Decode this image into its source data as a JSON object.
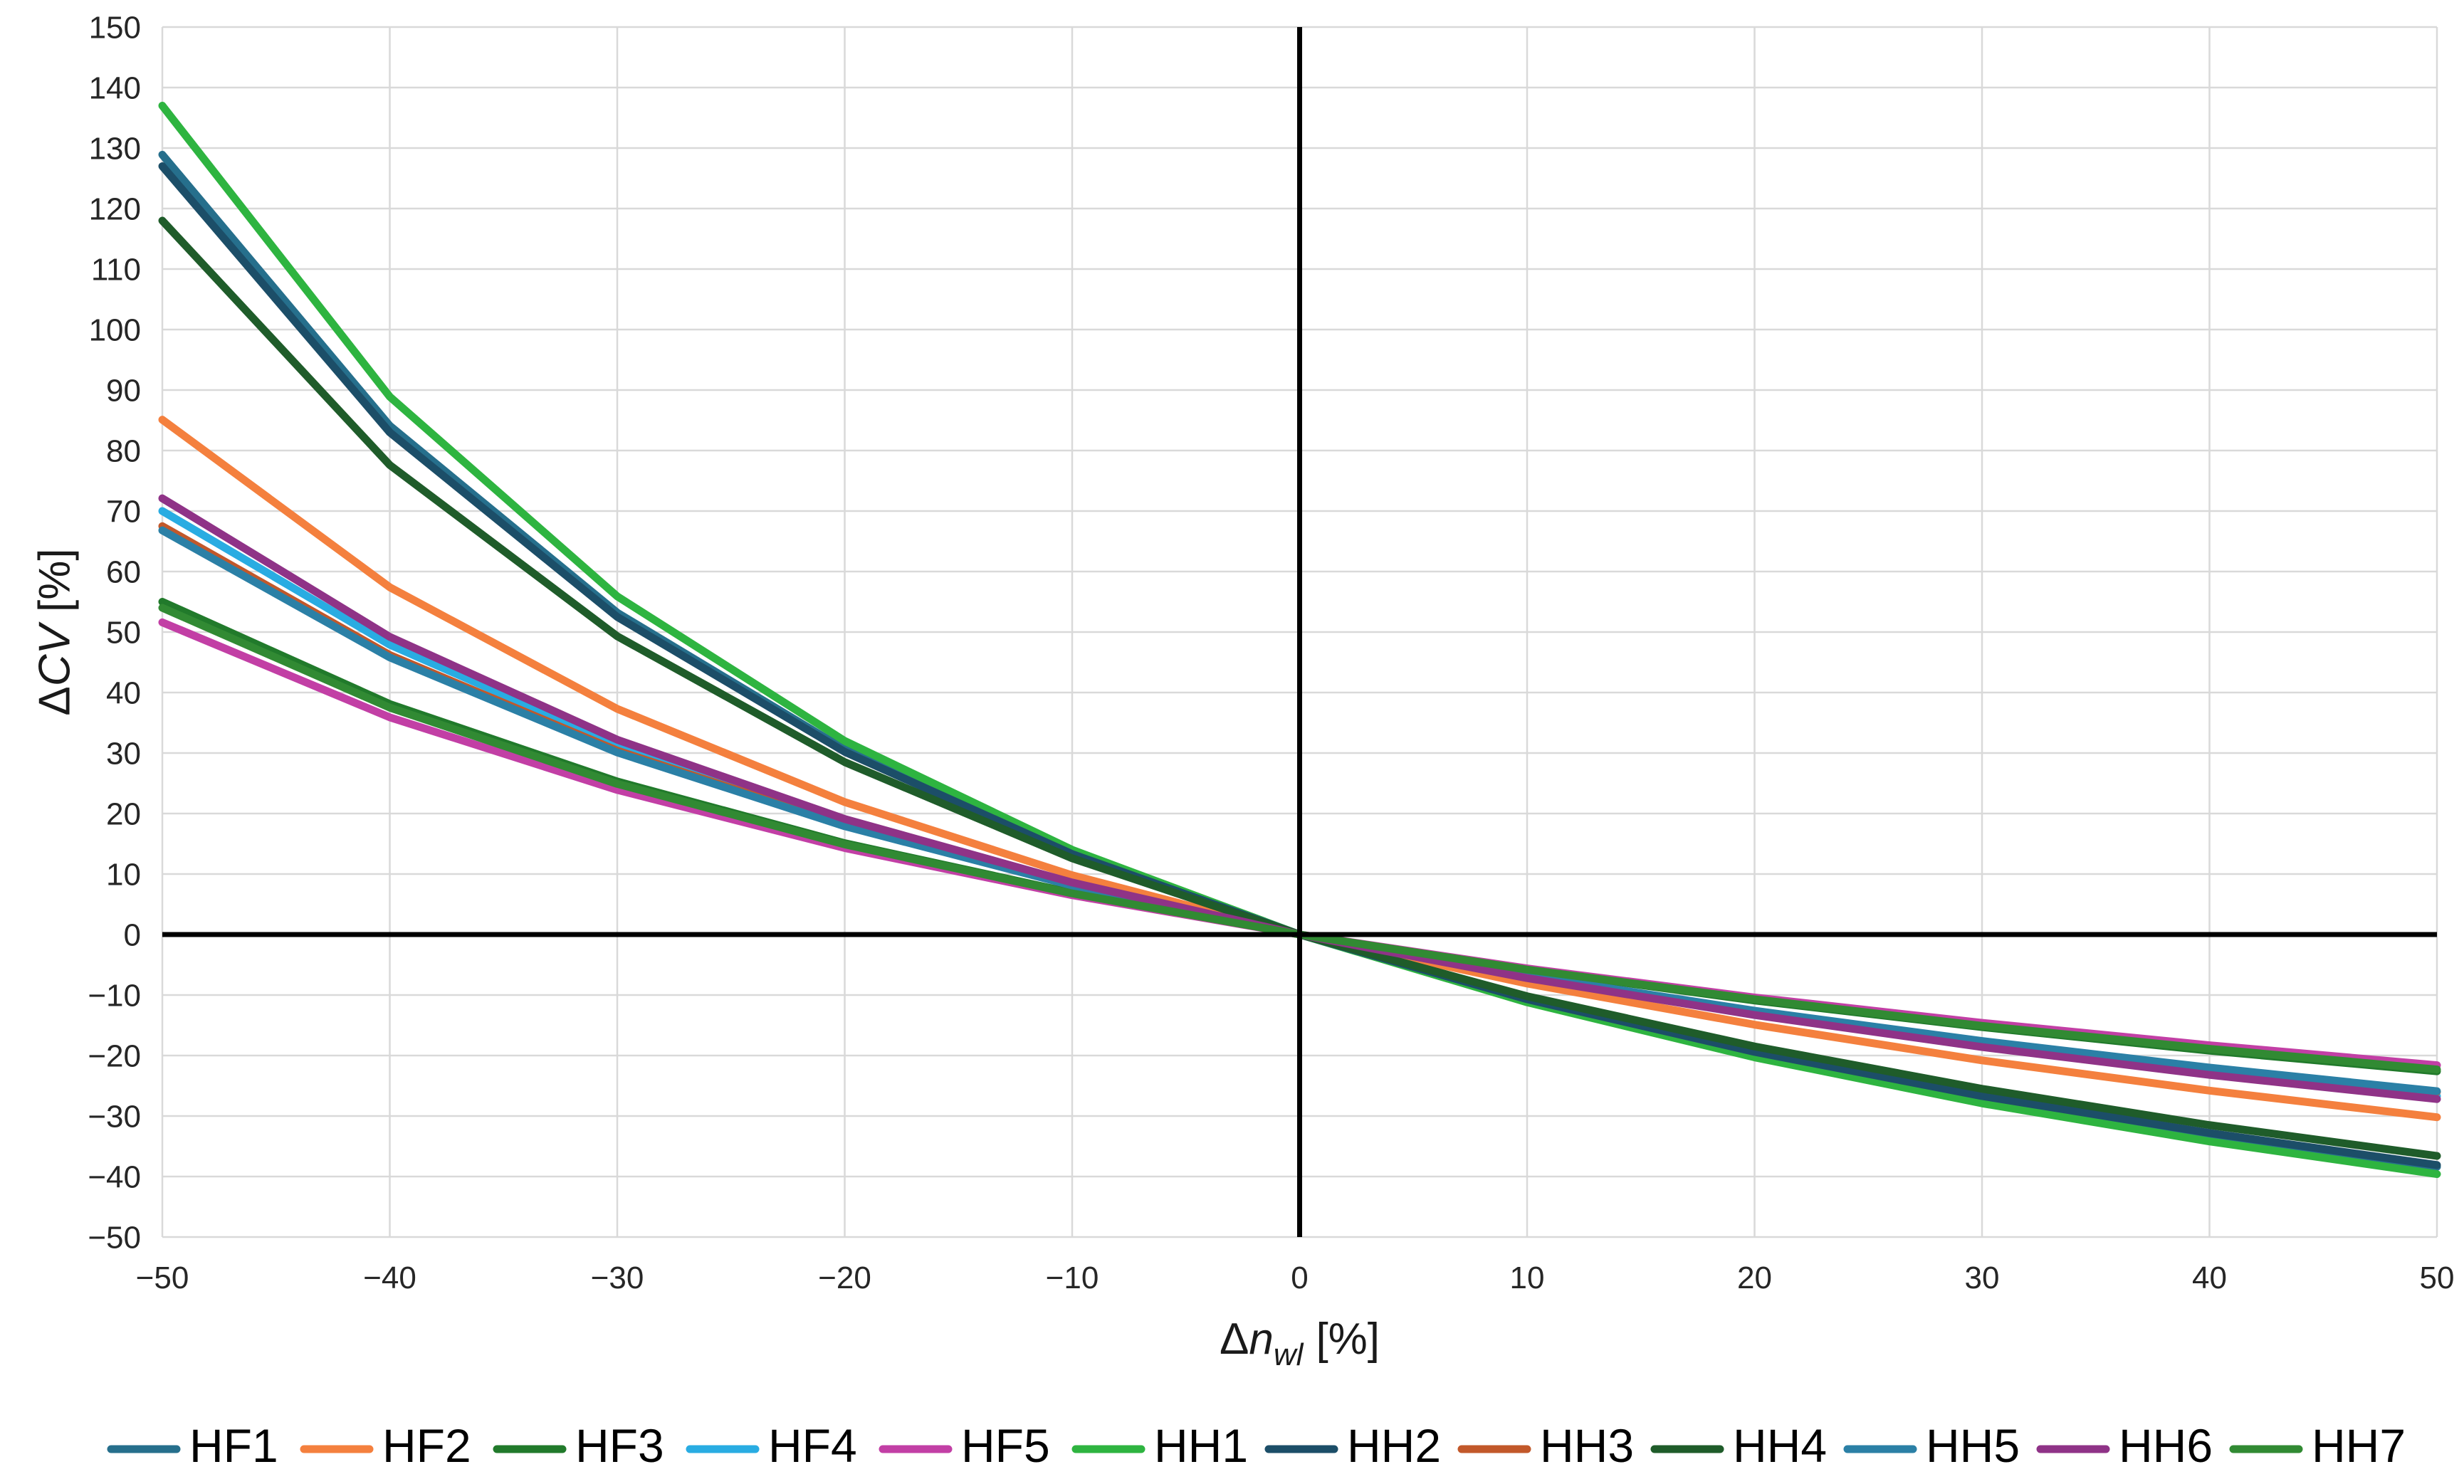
{
  "chart_data": {
    "type": "line",
    "title": "",
    "xlabel_text": "Δn_wl [%]",
    "ylabel_text": "ΔCV [%]",
    "xlabel_parts": {
      "delta": "Δ",
      "symbol": "n",
      "subscript": "wl",
      "unit": "[%]"
    },
    "ylabel_parts": {
      "delta": "Δ",
      "symbol": "CV",
      "unit": "[%]"
    },
    "xlim": [
      -50,
      50
    ],
    "ylim": [
      -50,
      150
    ],
    "grid": true,
    "gridline_color": "#D9D9D9",
    "axis_line_color": "#000000",
    "tick_label_color": "#262626",
    "axis_title_color": "#1a1a1a",
    "legend_text_color": "#000000",
    "legend_position": "bottom",
    "x_ticks": [
      -50,
      -40,
      -30,
      -20,
      -10,
      0,
      10,
      20,
      30,
      40,
      50
    ],
    "x_tick_labels": [
      "−50",
      "−40",
      "−30",
      "−20",
      "−10",
      "0",
      "10",
      "20",
      "30",
      "40",
      "50"
    ],
    "y_ticks": [
      150,
      140,
      130,
      120,
      110,
      100,
      90,
      80,
      70,
      60,
      50,
      40,
      30,
      20,
      10,
      0,
      -10,
      -20,
      -30,
      -40,
      -50
    ],
    "y_tick_labels": [
      "150",
      "140",
      "130",
      "120",
      "110",
      "100",
      "90",
      "80",
      "70",
      "60",
      "50",
      "40",
      "30",
      "20",
      "10",
      "0",
      "−10",
      "−20",
      "−30",
      "−40",
      "−50"
    ],
    "x": [
      -50,
      -40,
      -30,
      -20,
      -10,
      0,
      10,
      20,
      30,
      40,
      50
    ],
    "series": [
      {
        "name": "HF1",
        "color": "#266F8C",
        "values": [
          128.9,
          84.1,
          53.2,
          30.6,
          13.4,
          0,
          -10.8,
          -19.6,
          -26.9,
          -33.1,
          -38.4
        ]
      },
      {
        "name": "HF2",
        "color": "#F4803E",
        "values": [
          85.1,
          57.4,
          37.3,
          21.9,
          9.8,
          0,
          -8.1,
          -14.9,
          -20.8,
          -25.8,
          -30.2
        ]
      },
      {
        "name": "HF3",
        "color": "#217A2B",
        "values": [
          55.0,
          38.1,
          25.3,
          15.1,
          6.9,
          0,
          -5.8,
          -10.9,
          -15.3,
          -19.2,
          -22.6
        ]
      },
      {
        "name": "HF4",
        "color": "#29ACE2",
        "values": [
          70.0,
          47.9,
          31.4,
          18.6,
          8.4,
          0,
          -7.0,
          -13.0,
          -18.2,
          -22.7,
          -26.7
        ]
      },
      {
        "name": "HF5",
        "color": "#C23FA5",
        "values": [
          51.6,
          35.9,
          23.9,
          14.3,
          6.5,
          0,
          -5.6,
          -10.4,
          -14.6,
          -18.3,
          -21.6
        ]
      },
      {
        "name": "HH1",
        "color": "#2EB440",
        "values": [
          137.0,
          88.9,
          55.9,
          32.0,
          14.0,
          0,
          -11.2,
          -20.3,
          -27.9,
          -34.2,
          -39.6
        ]
      },
      {
        "name": "HH2",
        "color": "#1C4E68",
        "values": [
          127.0,
          83.0,
          52.5,
          30.2,
          13.3,
          0,
          -10.7,
          -19.4,
          -26.7,
          -32.8,
          -38.1
        ]
      },
      {
        "name": "HH3",
        "color": "#C2582A",
        "values": [
          67.5,
          46.2,
          30.4,
          18.1,
          8.2,
          0,
          -6.8,
          -12.7,
          -17.7,
          -22.2,
          -26.0
        ]
      },
      {
        "name": "HH4",
        "color": "#1F5C2A",
        "values": [
          118.0,
          77.6,
          49.3,
          28.5,
          12.6,
          0,
          -10.2,
          -18.5,
          -25.5,
          -31.5,
          -36.6
        ]
      },
      {
        "name": "HH5",
        "color": "#2B80A6",
        "values": [
          66.8,
          45.8,
          30.1,
          17.9,
          8.1,
          0,
          -6.8,
          -12.6,
          -17.6,
          -22.0,
          -25.9
        ]
      },
      {
        "name": "HH6",
        "color": "#8F3387",
        "values": [
          72.1,
          49.2,
          32.2,
          19.1,
          8.6,
          0,
          -7.2,
          -13.3,
          -18.6,
          -23.2,
          -27.2
        ]
      },
      {
        "name": "HH7",
        "color": "#318A33",
        "values": [
          54.0,
          37.5,
          24.9,
          14.9,
          6.8,
          0,
          -5.8,
          -10.7,
          -15.1,
          -18.9,
          -22.3
        ]
      }
    ]
  }
}
